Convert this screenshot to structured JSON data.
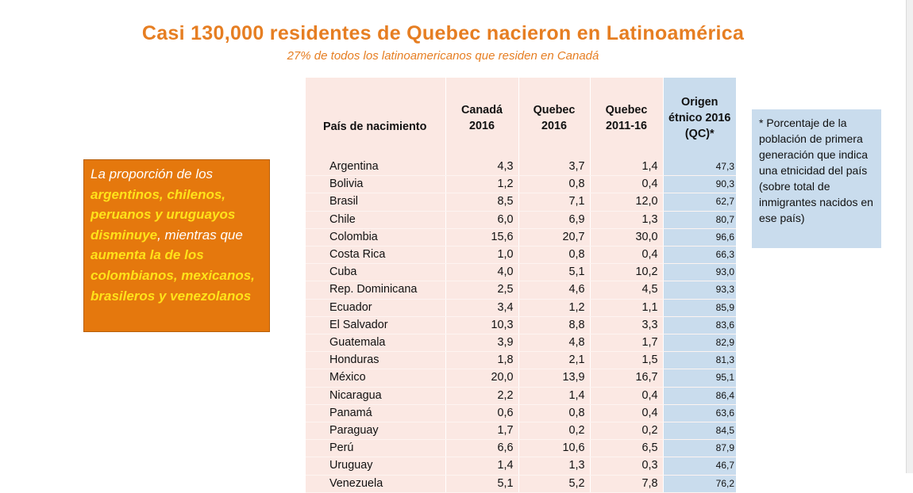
{
  "title": "Casi 130,000 residentes de Quebec nacieron en Latinoamérica",
  "subtitle": "27% de todos los latinoamericanos que residen en Canadá",
  "callout": {
    "p1": "La proporción de los ",
    "h1": "argentinos, chilenos, peruanos y uruguayos disminuye",
    "p2": ", mientras que ",
    "h2": "aumenta la de los colombianos, mexicanos, brasileros y venezolanos"
  },
  "table": {
    "headers": {
      "country": "País de nacimiento",
      "canada_2016_a": "Canadá",
      "canada_2016_b": "2016",
      "quebec_2016_a": "Quebec",
      "quebec_2016_b": "2016",
      "quebec_1116_a": "Quebec",
      "quebec_1116_b": "2011-16",
      "origen_a": "Origen",
      "origen_b": "étnico 2016",
      "origen_c": "(QC)*"
    },
    "rows": [
      {
        "country": "Argentina",
        "canada_2016": "4,3",
        "quebec_2016": "3,7",
        "quebec_2011_16": "1,4",
        "origen_2016": "47,3"
      },
      {
        "country": "Bolivia",
        "canada_2016": "1,2",
        "quebec_2016": "0,8",
        "quebec_2011_16": "0,4",
        "origen_2016": "90,3"
      },
      {
        "country": "Brasil",
        "canada_2016": "8,5",
        "quebec_2016": "7,1",
        "quebec_2011_16": "12,0",
        "origen_2016": "62,7"
      },
      {
        "country": "Chile",
        "canada_2016": "6,0",
        "quebec_2016": "6,9",
        "quebec_2011_16": "1,3",
        "origen_2016": "80,7"
      },
      {
        "country": "Colombia",
        "canada_2016": "15,6",
        "quebec_2016": "20,7",
        "quebec_2011_16": "30,0",
        "origen_2016": "96,6"
      },
      {
        "country": "Costa Rica",
        "canada_2016": "1,0",
        "quebec_2016": "0,8",
        "quebec_2011_16": "0,4",
        "origen_2016": "66,3"
      },
      {
        "country": "Cuba",
        "canada_2016": "4,0",
        "quebec_2016": "5,1",
        "quebec_2011_16": "10,2",
        "origen_2016": "93,0"
      },
      {
        "country": "Rep. Dominicana",
        "canada_2016": "2,5",
        "quebec_2016": "4,6",
        "quebec_2011_16": "4,5",
        "origen_2016": "93,3"
      },
      {
        "country": "Ecuador",
        "canada_2016": "3,4",
        "quebec_2016": "1,2",
        "quebec_2011_16": "1,1",
        "origen_2016": "85,9"
      },
      {
        "country": "El Salvador",
        "canada_2016": "10,3",
        "quebec_2016": "8,8",
        "quebec_2011_16": "3,3",
        "origen_2016": "83,6"
      },
      {
        "country": "Guatemala",
        "canada_2016": "3,9",
        "quebec_2016": "4,8",
        "quebec_2011_16": "1,7",
        "origen_2016": "82,9"
      },
      {
        "country": "Honduras",
        "canada_2016": "1,8",
        "quebec_2016": "2,1",
        "quebec_2011_16": "1,5",
        "origen_2016": "81,3"
      },
      {
        "country": "México",
        "canada_2016": "20,0",
        "quebec_2016": "13,9",
        "quebec_2011_16": "16,7",
        "origen_2016": "95,1"
      },
      {
        "country": "Nicaragua",
        "canada_2016": "2,2",
        "quebec_2016": "1,4",
        "quebec_2011_16": "0,4",
        "origen_2016": "86,4"
      },
      {
        "country": "Panamá",
        "canada_2016": "0,6",
        "quebec_2016": "0,8",
        "quebec_2011_16": "0,4",
        "origen_2016": "63,6"
      },
      {
        "country": "Paraguay",
        "canada_2016": "1,7",
        "quebec_2016": "0,2",
        "quebec_2011_16": "0,2",
        "origen_2016": "84,5"
      },
      {
        "country": "Perú",
        "canada_2016": "6,6",
        "quebec_2016": "10,6",
        "quebec_2011_16": "6,5",
        "origen_2016": "87,9"
      },
      {
        "country": "Uruguay",
        "canada_2016": "1,4",
        "quebec_2016": "1,3",
        "quebec_2011_16": "0,3",
        "origen_2016": "46,7"
      },
      {
        "country": "Venezuela",
        "canada_2016": "5,1",
        "quebec_2016": "5,2",
        "quebec_2011_16": "7,8",
        "origen_2016": "76,2"
      }
    ]
  },
  "note": "* Porcentaje de la población de primera generación que indica una etnicidad del país (sobre total de inmigrantes nacidos en ese país)",
  "colors": {
    "title_orange": "#e67e22",
    "callout_bg": "#e5780d",
    "callout_highlight": "#ffe21a",
    "table_pink": "#fbe8e3",
    "column_blue": "#c9dced"
  }
}
